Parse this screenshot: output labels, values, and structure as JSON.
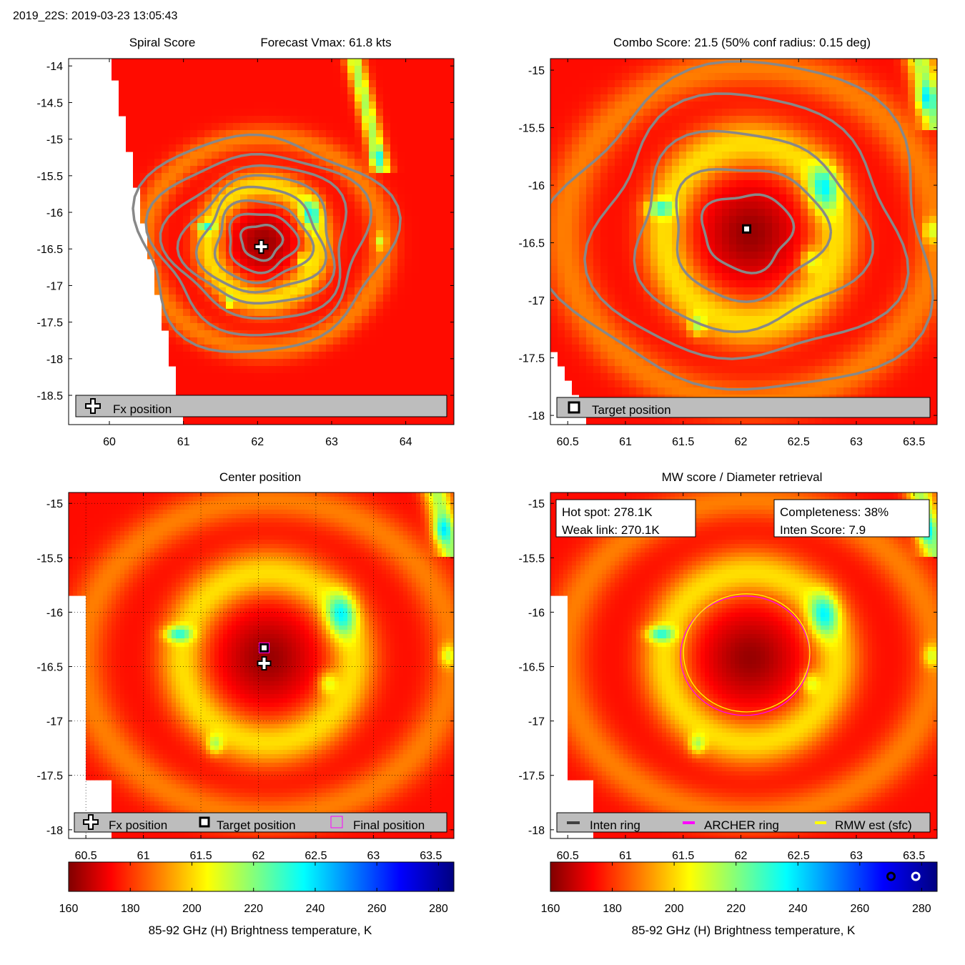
{
  "header": "2019_22S: 2019-03-23 13:05:43",
  "colors": {
    "contour": "#888888",
    "legend_bg": "#bdbdbd",
    "magenta": "#ff00ff",
    "yellow": "#ffff00",
    "inten_ring": "#404040"
  },
  "colorbar": {
    "label": "85-92 GHz (H) Brightness temperature, K",
    "range": [
      160,
      285
    ],
    "ticks": [
      "160",
      "180",
      "200",
      "220",
      "240",
      "260",
      "280"
    ],
    "tick_values": [
      160,
      180,
      200,
      220,
      240,
      260,
      280
    ],
    "marker_values": [
      270.1,
      278.1
    ]
  },
  "chart_data": [
    {
      "type": "heatmap",
      "title_left": "Spiral Score",
      "title_right": "Forecast Vmax: 61.8 kts",
      "xlim": [
        59.45,
        64.65
      ],
      "ylim": [
        -18.9,
        -13.9
      ],
      "xticks": [
        "60",
        "61",
        "62",
        "63",
        "64"
      ],
      "xtick_values": [
        60,
        61,
        62,
        63,
        64
      ],
      "yticks": [
        "-14",
        "-14.5",
        "-15",
        "-15.5",
        "-16",
        "-16.5",
        "-17",
        "-17.5",
        "-18",
        "-18.5"
      ],
      "ytick_values": [
        -14,
        -14.5,
        -15,
        -15.5,
        -16,
        -16.5,
        -17,
        -17.5,
        -18,
        -18.5
      ],
      "center": [
        62.05,
        -16.4
      ],
      "fx_position": [
        62.05,
        -16.47
      ],
      "legend": [
        "Fx position"
      ]
    },
    {
      "type": "heatmap",
      "title": "Combo Score: 21.5  (50% conf radius: 0.15 deg)",
      "xlim": [
        60.35,
        63.7
      ],
      "ylim": [
        -18.08,
        -14.9
      ],
      "xticks": [
        "60.5",
        "61",
        "61.5",
        "62",
        "62.5",
        "63",
        "63.5"
      ],
      "xtick_values": [
        60.5,
        61,
        61.5,
        62,
        62.5,
        63,
        63.5
      ],
      "yticks": [
        "-15",
        "-15.5",
        "-16",
        "-16.5",
        "-17",
        "-17.5",
        "-18"
      ],
      "ytick_values": [
        -15,
        -15.5,
        -16,
        -16.5,
        -17,
        -17.5,
        -18
      ],
      "center": [
        62.05,
        -16.4
      ],
      "target_position": [
        62.05,
        -16.38
      ],
      "legend": [
        "Target position"
      ]
    },
    {
      "type": "heatmap",
      "title": "Center position",
      "xlim": [
        60.35,
        63.7
      ],
      "ylim": [
        -18.08,
        -14.9
      ],
      "xticks": [
        "60.5",
        "61",
        "61.5",
        "62",
        "62.5",
        "63",
        "63.5"
      ],
      "xtick_values": [
        60.5,
        61,
        61.5,
        62,
        62.5,
        63,
        63.5
      ],
      "yticks": [
        "-15",
        "-15.5",
        "-16",
        "-16.5",
        "-17",
        "-17.5",
        "-18"
      ],
      "ytick_values": [
        -15,
        -15.5,
        -16,
        -16.5,
        -17,
        -17.5,
        -18
      ],
      "grid": true,
      "center": [
        62.05,
        -16.4
      ],
      "fx_position": [
        62.05,
        -16.47
      ],
      "target_position": [
        62.05,
        -16.38
      ],
      "final_position": [
        62.05,
        -16.38
      ],
      "legend": [
        "Fx position",
        "Target position",
        "Final position"
      ]
    },
    {
      "type": "heatmap",
      "title": "MW score / Diameter retrieval",
      "xlim": [
        60.35,
        63.7
      ],
      "ylim": [
        -18.08,
        -14.9
      ],
      "xticks": [
        "60.5",
        "61",
        "61.5",
        "62",
        "62.5",
        "63",
        "63.5"
      ],
      "xtick_values": [
        60.5,
        61,
        61.5,
        62,
        62.5,
        63,
        63.5
      ],
      "yticks": [
        "-15",
        "-15.5",
        "-16",
        "-16.5",
        "-17",
        "-17.5",
        "-18"
      ],
      "ytick_values": [
        -15,
        -15.5,
        -16,
        -16.5,
        -17,
        -17.5,
        -18
      ],
      "center": [
        62.05,
        -16.4
      ],
      "hot_spot": "Hot spot: 278.1K",
      "weak_link": "Weak link: 270.1K",
      "completeness": "Completeness: 38%",
      "inten_score": "Inten Score: 7.9",
      "archer_ring_radius": 0.56,
      "rmw_ring_radius": 0.51,
      "legend": [
        "Inten ring",
        "ARCHER ring",
        "RMW est (sfc)"
      ]
    }
  ]
}
